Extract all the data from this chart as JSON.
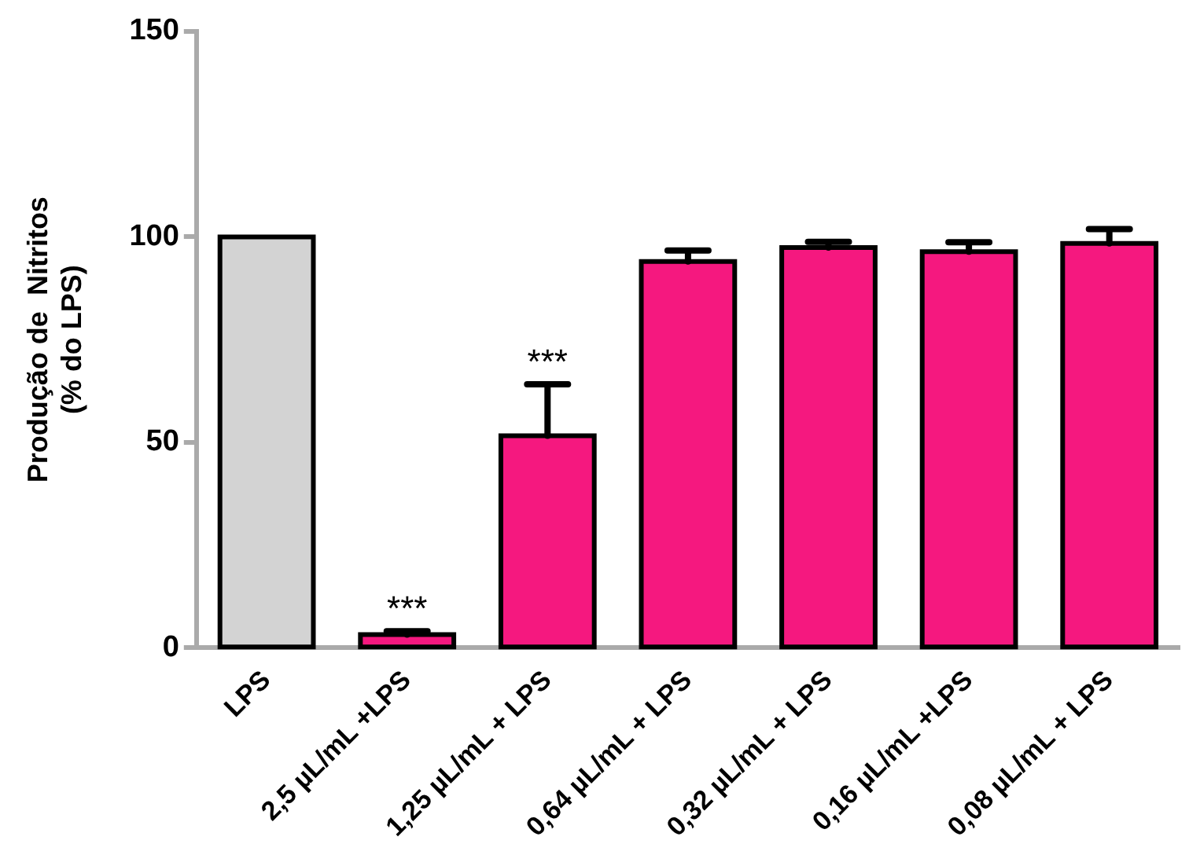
{
  "chart_data": {
    "type": "bar",
    "ylabel": "Produção de  Nitritos\n(% do LPS)",
    "categories": [
      "LPS",
      "2,5 µL/mL +LPS",
      "1,25 µL/mL + LPS",
      "0,64 µL/mL + LPS",
      "0,32 µL/mL + LPS",
      "0,16 µL/mL +LPS",
      "0,08 µL/mL + LPS"
    ],
    "values": [
      100,
      3.2,
      51.6,
      94,
      97.4,
      96.4,
      98.4
    ],
    "colors": [
      "#d3d3d3",
      "#f5187f",
      "#f5187f",
      "#f5187f",
      "#f5187f",
      "#f5187f",
      "#f5187f"
    ],
    "errors": [
      null,
      [
        3.2,
        4
      ],
      [
        51.6,
        64.1
      ],
      [
        94,
        96.7
      ],
      [
        97.4,
        98.8
      ],
      [
        96.4,
        98.7
      ],
      [
        98.4,
        101.9
      ]
    ],
    "ylim": [
      0,
      150
    ],
    "yticks": [
      0,
      50,
      100,
      150
    ],
    "grid": false,
    "legend": false,
    "annotations": [
      {
        "text": "***",
        "x": "2,5 µL/mL +LPS",
        "y": 4
      },
      {
        "text": "***",
        "x": "1,25 µL/mL + LPS",
        "y": 64.1
      }
    ]
  }
}
